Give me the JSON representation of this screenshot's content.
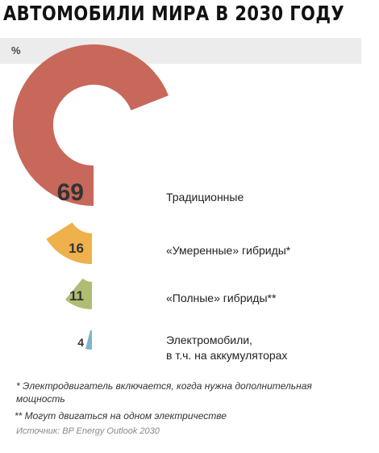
{
  "title": "АВТОМОБИЛИ МИРА В 2030 ГОДУ",
  "unit": "%",
  "chart_data": {
    "type": "pie",
    "title": "АВТОМОБИЛИ МИРА В 2030 ГОДУ",
    "unit": "%",
    "categories": [
      "Традиционные",
      "«Умеренные» гибриды*",
      "«Полные» гибриды**",
      "Электромобили,\nв т.ч. на аккумуляторах"
    ],
    "values": [
      69,
      16,
      11,
      4
    ],
    "value_labels": [
      "69",
      "16",
      "11",
      "4"
    ],
    "colors": [
      "#c8685a",
      "#eeb14b",
      "#aebd72",
      "#7ab6d0"
    ]
  },
  "labels": {
    "l0": "Традиционные",
    "l1": "«Умеренные» гибриды*",
    "l2": "«Полные» гибриды**",
    "l3": "Электромобили,\nв т.ч. на аккумуляторах"
  },
  "footnotes": {
    "f1": "* Электродвигатель включается, когда нужна дополнительная мощность",
    "f2": "** Могут двигаться на одном электричестве"
  },
  "source": "Источник: BP Energy Outlook 2030"
}
